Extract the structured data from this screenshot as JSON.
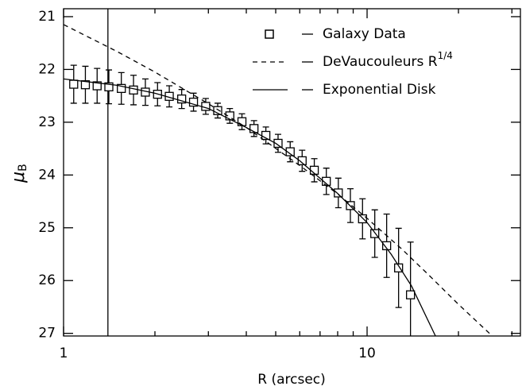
{
  "chart_data": {
    "type": "scatter",
    "xlabel": "R (arcsec)",
    "ylabel": "μ",
    "ylabel_sub": "B",
    "xlog": true,
    "xlim": [
      1,
      32
    ],
    "ylim": [
      27.05,
      20.85
    ],
    "xticks": [
      1,
      10
    ],
    "xminor": [
      2,
      3,
      4,
      5,
      6,
      7,
      8,
      9,
      20,
      30
    ],
    "yticks": [
      21,
      22,
      23,
      24,
      25,
      26,
      27
    ],
    "vline": 1.4,
    "legend": "upper right",
    "series": [
      {
        "name": "Galaxy Data",
        "kind": "points",
        "color": "#000",
        "x": [
          1.08,
          1.18,
          1.29,
          1.41,
          1.55,
          1.7,
          1.86,
          2.04,
          2.23,
          2.45,
          2.68,
          2.94,
          3.22,
          3.53,
          3.87,
          4.24,
          4.64,
          5.09,
          5.58,
          6.11,
          6.7,
          7.34,
          8.04,
          8.81,
          9.66,
          10.6,
          11.6,
          12.7,
          13.9
        ],
        "values": [
          22.28,
          22.29,
          22.31,
          22.33,
          22.36,
          22.39,
          22.43,
          22.47,
          22.51,
          22.56,
          22.62,
          22.7,
          22.78,
          22.88,
          22.99,
          23.12,
          23.25,
          23.4,
          23.56,
          23.73,
          23.91,
          24.12,
          24.34,
          24.58,
          24.83,
          25.11,
          25.34,
          25.76,
          26.27
        ],
        "errors": [
          0.36,
          0.35,
          0.33,
          0.32,
          0.3,
          0.28,
          0.25,
          0.22,
          0.2,
          0.18,
          0.17,
          0.15,
          0.14,
          0.14,
          0.15,
          0.15,
          0.16,
          0.17,
          0.19,
          0.2,
          0.22,
          0.25,
          0.28,
          0.32,
          0.38,
          0.45,
          0.6,
          0.75,
          1.0
        ]
      },
      {
        "name": "DeVaucouleurs R",
        "name_sup": "1/4",
        "kind": "dashed",
        "color": "#000",
        "x": [
          1,
          1.5,
          2,
          3,
          4,
          6,
          8,
          10,
          13,
          16,
          20,
          25.3
        ],
        "values": [
          21.15,
          21.66,
          22.05,
          22.65,
          23.1,
          23.82,
          24.36,
          24.82,
          25.4,
          25.9,
          26.45,
          27.0
        ]
      },
      {
        "name": "Exponential Disk",
        "kind": "solid",
        "color": "#000",
        "x": [
          1,
          1.5,
          2,
          3,
          4,
          5,
          6,
          8,
          10,
          12,
          14,
          16.8
        ],
        "values": [
          22.18,
          22.3,
          22.45,
          22.74,
          23.1,
          23.4,
          23.73,
          24.35,
          24.9,
          25.5,
          26.1,
          27.05
        ]
      }
    ]
  }
}
